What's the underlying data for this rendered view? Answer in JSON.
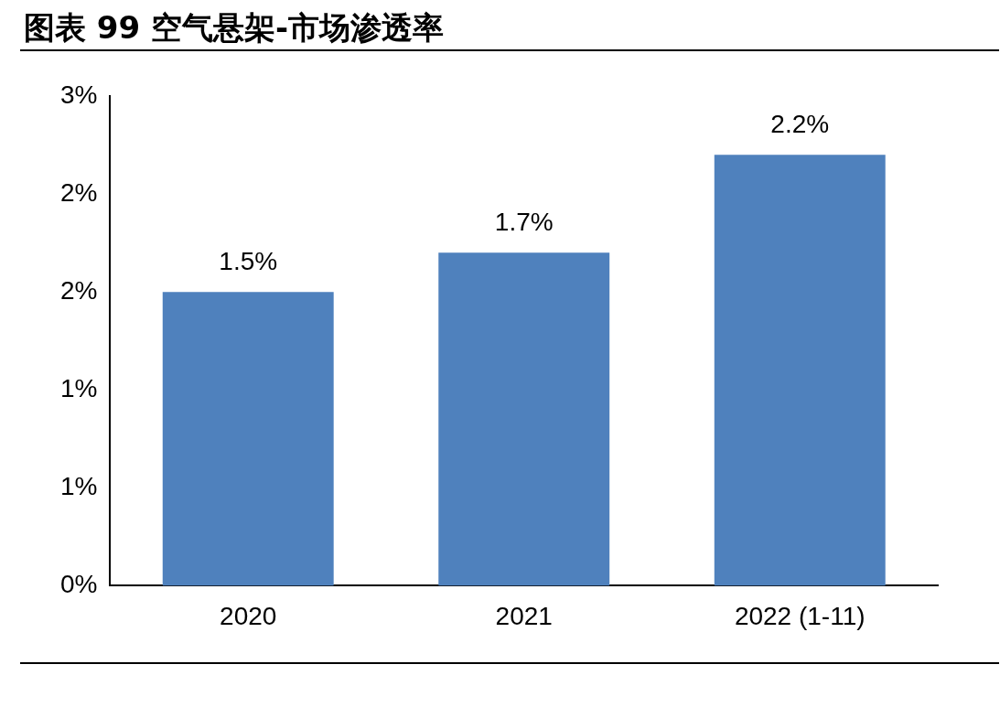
{
  "chart_data": {
    "type": "bar",
    "title": "图表 99 空气悬架-市场渗透率",
    "categories": [
      "2020",
      "2021",
      "2022 (1-11)"
    ],
    "values": [
      1.5,
      1.7,
      2.2
    ],
    "value_labels": [
      "1.5%",
      "1.7%",
      "2.2%"
    ],
    "color": "#4f81bd",
    "ylim": [
      0,
      2.5
    ],
    "yticks": [
      {
        "value": 0,
        "label": "0%"
      },
      {
        "value": 0.5,
        "label": "1%"
      },
      {
        "value": 1,
        "label": "1%"
      },
      {
        "value": 1.5,
        "label": "2%"
      },
      {
        "value": 2,
        "label": "2%"
      },
      {
        "value": 2.5,
        "label": "3%"
      }
    ],
    "grid": false,
    "legend": false
  }
}
